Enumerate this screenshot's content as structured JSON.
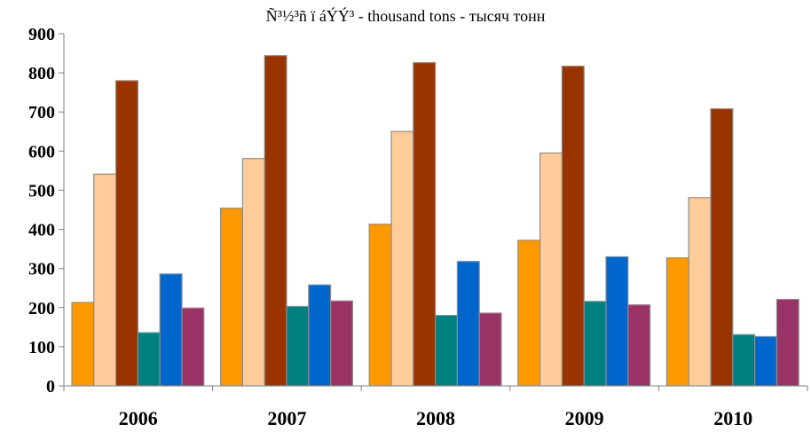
{
  "chart_data": {
    "type": "bar",
    "title": "Ñ³½³ñ ï áÝÝ³  - thousand tons - тысяч тонн",
    "categories": [
      "2006",
      "2007",
      "2008",
      "2009",
      "2010"
    ],
    "ylim": [
      0,
      900
    ],
    "yticks": [
      0,
      100,
      200,
      300,
      400,
      500,
      600,
      700,
      800,
      900
    ],
    "grid": false,
    "legend": "none",
    "series": [
      {
        "color": "#FF9900",
        "values": [
          213,
          454,
          413,
          372,
          327
        ]
      },
      {
        "color": "#FFCC99",
        "values": [
          541,
          581,
          650,
          595,
          481
        ]
      },
      {
        "color": "#993300",
        "values": [
          780,
          844,
          826,
          817,
          708
        ]
      },
      {
        "color": "#008080",
        "values": [
          136,
          203,
          180,
          216,
          131
        ]
      },
      {
        "color": "#0066CC",
        "values": [
          286,
          258,
          318,
          330,
          126
        ]
      },
      {
        "color": "#993366",
        "values": [
          199,
          217,
          186,
          207,
          221
        ]
      }
    ]
  }
}
